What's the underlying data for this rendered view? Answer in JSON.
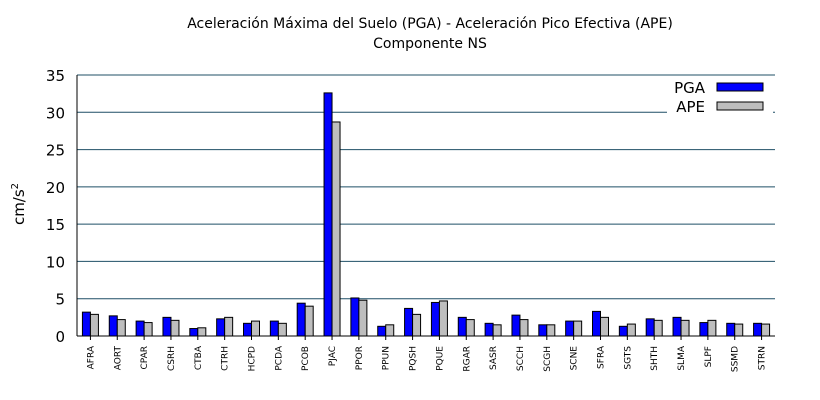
{
  "chart_data": {
    "type": "bar",
    "title": "Aceleración Máxima del Suelo (PGA) -   Aceleración Pico Efectiva (APE)",
    "subtitle": "Componente NS",
    "ylabel_base": "cm/s",
    "ylabel_sup": "2",
    "xlabel": "",
    "ylim": [
      0,
      35
    ],
    "yticks": [
      0,
      5,
      10,
      15,
      20,
      25,
      30,
      35
    ],
    "grid": "horizontal",
    "legend_position": "top-right",
    "categories": [
      "AFRA",
      "AORT",
      "CPAR",
      "CSRH",
      "CTBA",
      "CTRH",
      "HCPD",
      "PCDA",
      "PCOB",
      "PJAC",
      "PPOR",
      "PPUN",
      "PQSH",
      "PQUE",
      "RGAR",
      "SASR",
      "SCCH",
      "SCGH",
      "SCNE",
      "SFRA",
      "SGTS",
      "SHTH",
      "SLMA",
      "SLPF",
      "SSMD",
      "STRN"
    ],
    "series": [
      {
        "name": "PGA",
        "color": "#0000ff",
        "values": [
          3.2,
          2.7,
          2.0,
          2.5,
          1.0,
          2.3,
          1.7,
          2.0,
          4.4,
          32.6,
          5.1,
          1.3,
          3.7,
          4.5,
          2.5,
          1.7,
          2.8,
          1.5,
          2.0,
          3.3,
          1.3,
          2.3,
          2.5,
          1.8,
          1.7,
          1.7
        ]
      },
      {
        "name": "APE",
        "color": "#bebebe",
        "values": [
          2.9,
          2.2,
          1.8,
          2.1,
          1.1,
          2.5,
          2.0,
          1.7,
          4.0,
          28.7,
          4.8,
          1.5,
          2.9,
          4.7,
          2.2,
          1.5,
          2.2,
          1.5,
          2.0,
          2.5,
          1.6,
          2.1,
          2.1,
          2.1,
          1.6,
          1.6
        ]
      }
    ]
  }
}
